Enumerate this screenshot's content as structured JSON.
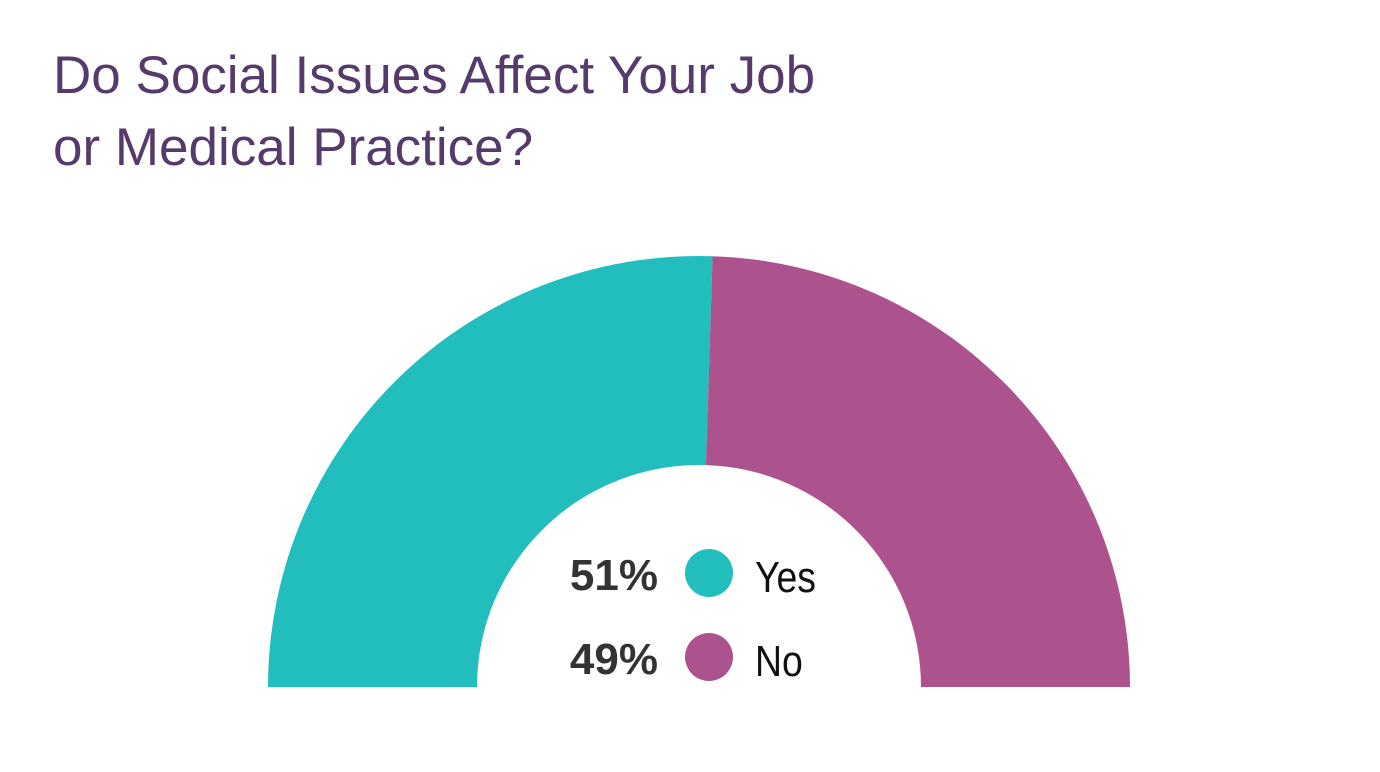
{
  "chart_data": {
    "type": "pie",
    "variant": "half-donut",
    "title_lines": [
      "Do Social Issues Affect Your Job",
      "or Medical Practice?"
    ],
    "categories": [
      "Yes",
      "No"
    ],
    "values": [
      51,
      49
    ],
    "value_labels": [
      "51%",
      "49%"
    ],
    "colors": [
      "#22bdbd",
      "#ac538d"
    ],
    "legend_placement": "center"
  }
}
